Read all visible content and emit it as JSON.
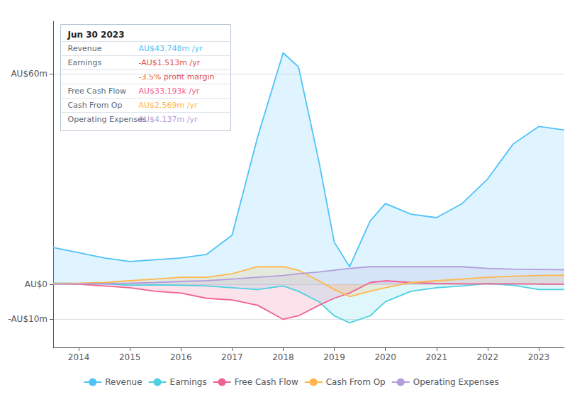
{
  "chart_data": {
    "type": "area",
    "x": [
      2013.5,
      2014.0,
      2014.5,
      2015.0,
      2015.5,
      2016.0,
      2016.5,
      2017.0,
      2017.5,
      2018.0,
      2018.3,
      2018.7,
      2019.0,
      2019.3,
      2019.7,
      2020.0,
      2020.5,
      2021.0,
      2021.5,
      2022.0,
      2022.5,
      2023.0,
      2023.5
    ],
    "series": [
      {
        "name": "Revenue",
        "color": "#4fc3f7",
        "values": [
          10.5,
          9.0,
          7.5,
          6.5,
          7.0,
          7.5,
          8.5,
          14.0,
          42.0,
          66.0,
          62.0,
          35.0,
          12.0,
          5.0,
          18.0,
          23.0,
          20.0,
          19.0,
          23.0,
          30.0,
          40.0,
          45.0,
          44.0
        ]
      },
      {
        "name": "Earnings",
        "color": "#4dd0e1",
        "values": [
          0.3,
          0.2,
          0.1,
          -0.3,
          -0.2,
          -0.3,
          -0.5,
          -1.0,
          -1.5,
          -0.5,
          -2.0,
          -5.0,
          -9.0,
          -11.0,
          -9.0,
          -5.0,
          -2.0,
          -1.0,
          -0.5,
          0.2,
          -0.3,
          -1.5,
          -1.5
        ]
      },
      {
        "name": "Free Cash Flow",
        "color": "#f06292",
        "values": [
          0.1,
          0.0,
          -0.5,
          -1.0,
          -2.0,
          -2.5,
          -4.0,
          -4.5,
          -6.0,
          -10.0,
          -9.0,
          -6.0,
          -4.0,
          -2.5,
          0.5,
          1.0,
          0.5,
          0.2,
          0.1,
          0.1,
          0.1,
          0.05,
          0.033
        ]
      },
      {
        "name": "Cash From Op",
        "color": "#ffb74d",
        "values": [
          0.2,
          0.3,
          0.5,
          1.0,
          1.5,
          2.0,
          2.0,
          3.0,
          5.0,
          5.0,
          4.0,
          1.0,
          -1.5,
          -3.5,
          -2.0,
          -1.0,
          0.5,
          1.0,
          1.5,
          2.0,
          2.3,
          2.5,
          2.569
        ]
      },
      {
        "name": "Operating Expenses",
        "color": "#b39ddb",
        "values": [
          0.0,
          0.1,
          0.2,
          0.3,
          0.5,
          0.8,
          1.0,
          1.5,
          2.0,
          2.5,
          3.0,
          3.5,
          4.0,
          4.5,
          5.0,
          5.0,
          5.0,
          5.0,
          5.0,
          4.5,
          4.3,
          4.2,
          4.137
        ]
      }
    ],
    "xlim": [
      2013.5,
      2023.5
    ],
    "xticks": [
      2014,
      2015,
      2016,
      2017,
      2018,
      2019,
      2020,
      2021,
      2022,
      2023
    ],
    "ylim": [
      -18,
      75
    ],
    "yticks": [
      {
        "value": 60,
        "label": "AU$60m"
      },
      {
        "value": 0,
        "label": "AU$0"
      },
      {
        "value": -10,
        "label": "-AU$10m"
      }
    ],
    "grid": true,
    "legend": "bottom",
    "annotations": [
      {
        "text": "Jun 30 2023"
      },
      {
        "label": "Revenue",
        "text": "AU$43.748m /yr",
        "color": "#4fc3f7"
      },
      {
        "label": "Earnings",
        "text": "-AU$1.513m /yr",
        "color": "#e05050"
      },
      {
        "parts": [
          {
            "text": "-3.5%",
            "color": "#e06820"
          },
          {
            "text": " profit margin",
            "color": "#e05050"
          }
        ]
      },
      {
        "label": "Free Cash Flow",
        "text": "AU$33.193k /yr",
        "color": "#f06292"
      },
      {
        "label": "Cash From Op",
        "text": "AU$2.569m /yr",
        "color": "#ffb74d"
      },
      {
        "label": "Operating Expenses",
        "text": "AU$4.137m /yr",
        "color": "#b39ddb"
      }
    ]
  }
}
